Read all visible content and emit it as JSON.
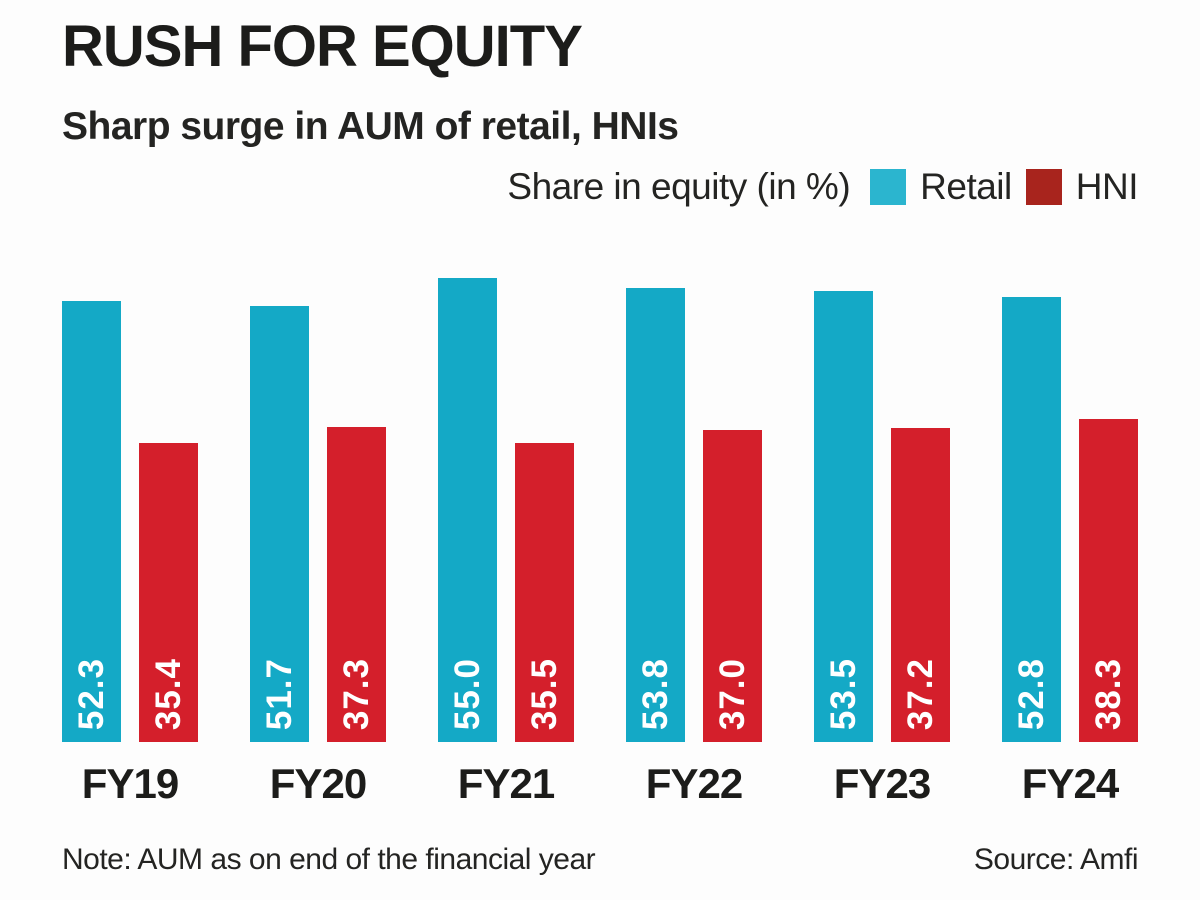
{
  "header": {
    "title": "RUSH FOR EQUITY",
    "subtitle": "Sharp surge in AUM of retail, HNIs"
  },
  "legend": {
    "caption": "Share in equity (in %)",
    "series": [
      {
        "label": "Retail",
        "swatch_color": "#2bb5cf"
      },
      {
        "label": "HNI",
        "swatch_color": "#a8241d"
      }
    ]
  },
  "footer": {
    "note": "Note: AUM as on end of the financial year",
    "source": "Source: Amfi"
  },
  "colors": {
    "retail_bar": "#14a9c6",
    "hni_bar": "#d41f2b",
    "value_label": "#ffffff",
    "text": "#1d1d1b",
    "background": "#fdfdfd"
  },
  "chart_data": {
    "type": "bar",
    "title": "RUSH FOR EQUITY",
    "subtitle": "Sharp surge in AUM of retail, HNIs",
    "caption": "Share in equity (in %)",
    "categories": [
      "FY19",
      "FY20",
      "FY21",
      "FY22",
      "FY23",
      "FY24"
    ],
    "series": [
      {
        "name": "Retail",
        "color": "#14a9c6",
        "values": [
          52.3,
          51.7,
          55.0,
          53.8,
          53.5,
          52.8
        ]
      },
      {
        "name": "HNI",
        "color": "#d41f2b",
        "values": [
          35.4,
          37.3,
          35.5,
          37.0,
          37.2,
          38.3
        ]
      }
    ],
    "value_label_format": "one-decimal, rotated 90deg, white, inside bar bottom",
    "ylim": [
      0,
      55
    ],
    "grid": false,
    "axes_shown": false,
    "legend_position": "top-right"
  }
}
